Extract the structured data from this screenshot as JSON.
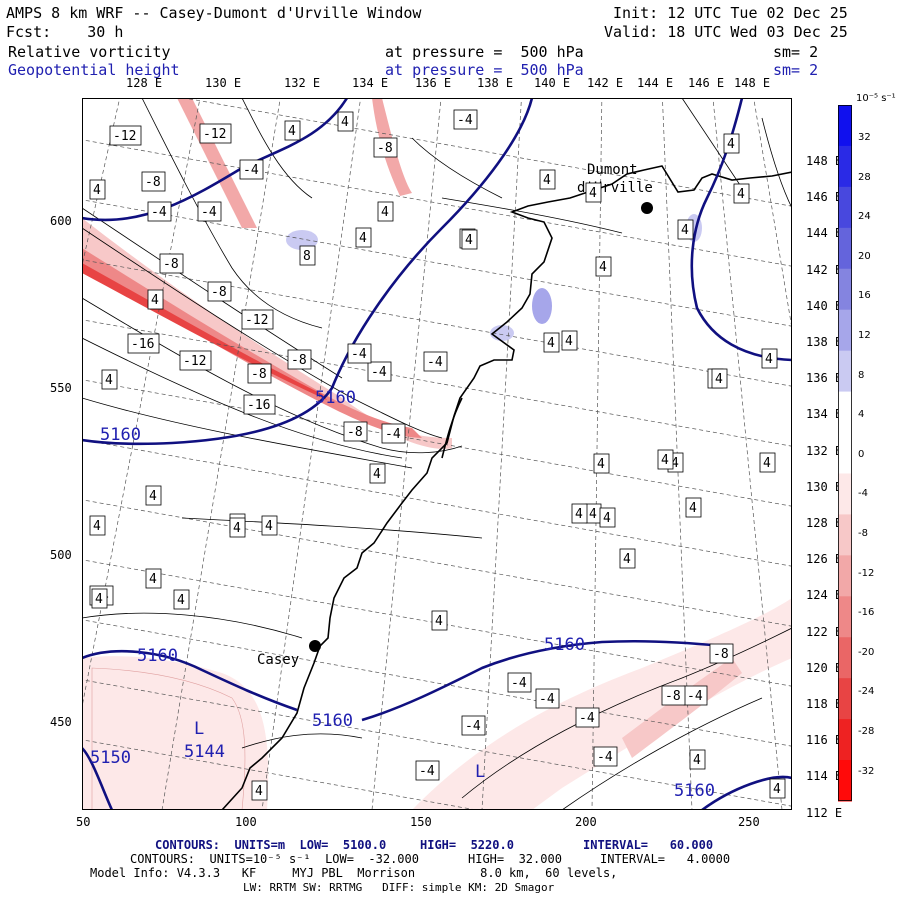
{
  "header": {
    "line1_left": "AMPS 8 km WRF -- Casey-Dumont d'Urville Window",
    "line1_right": "Init: 12 UTC Tue 02 Dec 25",
    "line2_left": "Fcst:    30 h",
    "line2_right": "Valid: 18 UTC Wed 03 Dec 25",
    "field1_name": "Relative vorticity",
    "field1_level": "at pressure =  500 hPa",
    "field1_sm": "sm= 2",
    "field2_name": "Geopotential height",
    "field2_level": "at pressure =  500 hPa",
    "field2_sm": "sm= 2"
  },
  "lon_top": [
    "128 E",
    "130 E",
    "132 E",
    "134 E",
    "136 E",
    "138 E",
    "140 E",
    "142 E",
    "144 E",
    "146 E",
    "148 E"
  ],
  "lat_right": [
    "148 E",
    "146 E",
    "144 E",
    "142 E",
    "140 E",
    "138 E",
    "136 E",
    "134 E",
    "132 E",
    "130 E",
    "128 E",
    "126 E",
    "124 E",
    "122 E",
    "120 E",
    "118 E",
    "116 E",
    "114 E",
    "112 E"
  ],
  "x_axis": [
    "50",
    "100",
    "150",
    "200",
    "250"
  ],
  "y_axis": [
    "600",
    "550",
    "500",
    "450"
  ],
  "places": {
    "casey": "Casey",
    "dumont_line1": "Dumont",
    "dumont_line2": "d'Urville"
  },
  "height_labels": [
    "5160",
    "5160",
    "5160",
    "5160",
    "5160",
    "5160",
    "5150",
    "5144"
  ],
  "low_marks": [
    "L",
    "L"
  ],
  "vort_labels": [
    "-12",
    "-12",
    "-4",
    "-4",
    "-8",
    "-4",
    "-4",
    "-8",
    "-8",
    "-8",
    "-8",
    "-12",
    "-16",
    "-12",
    "-16",
    "-8",
    "-4",
    "-4",
    "-4",
    "-8",
    "-4",
    "-4",
    "-8",
    "-4",
    "-4",
    "-4",
    "-4",
    "-4",
    "-4",
    "-4",
    "-8"
  ],
  "pos_labels": [
    "4",
    "4",
    "8",
    "4",
    "4",
    "4",
    "4",
    "4",
    "4",
    "4",
    "4",
    "4",
    "4",
    "4",
    "4",
    "4",
    "4",
    "4",
    "4",
    "4",
    "4",
    "4",
    "4",
    "4",
    "4",
    "4",
    "4",
    "4",
    "4",
    "4",
    "4",
    "4",
    "4",
    "4",
    "4",
    "4",
    "4",
    "4",
    "4",
    "4",
    "4",
    "4",
    "4"
  ],
  "colorbar": {
    "unit": "10⁻⁵ s⁻¹",
    "labels": [
      "32",
      "28",
      "24",
      "20",
      "16",
      "12",
      "8",
      "4",
      "0",
      "-4",
      "-8",
      "-12",
      "-16",
      "-20",
      "-24",
      "-28",
      "-32"
    ],
    "colors": [
      "#1010ee",
      "#2a2ae6",
      "#4848de",
      "#6464dc",
      "#8484e0",
      "#a6a6ea",
      "#cacaf2",
      "#ffffff",
      "#ffffff",
      "#fde8e8",
      "#f7c8c8",
      "#f2a8a8",
      "#ee8888",
      "#ea6666",
      "#e84444",
      "#ee2222",
      "#ff0a0a"
    ]
  },
  "footer": {
    "contours1_a": "CONTOURS:  UNITS=m  LOW=  5100.0",
    "contours1_b": "HIGH=  5220.0",
    "contours1_c": "INTERVAL=   60.000",
    "contours2_a": "CONTOURS:  UNITS=10⁻⁵ s⁻¹  LOW=  -32.000",
    "contours2_b": "HIGH=  32.000",
    "contours2_c": "INTERVAL=   4.0000",
    "model1": "Model Info: V4.3.3   KF     MYJ PBL  Morrison         8.0 km,  60 levels,",
    "model2": "LW: RRTM SW: RRTMG   DIFF: simple KM: 2D Smagor"
  }
}
